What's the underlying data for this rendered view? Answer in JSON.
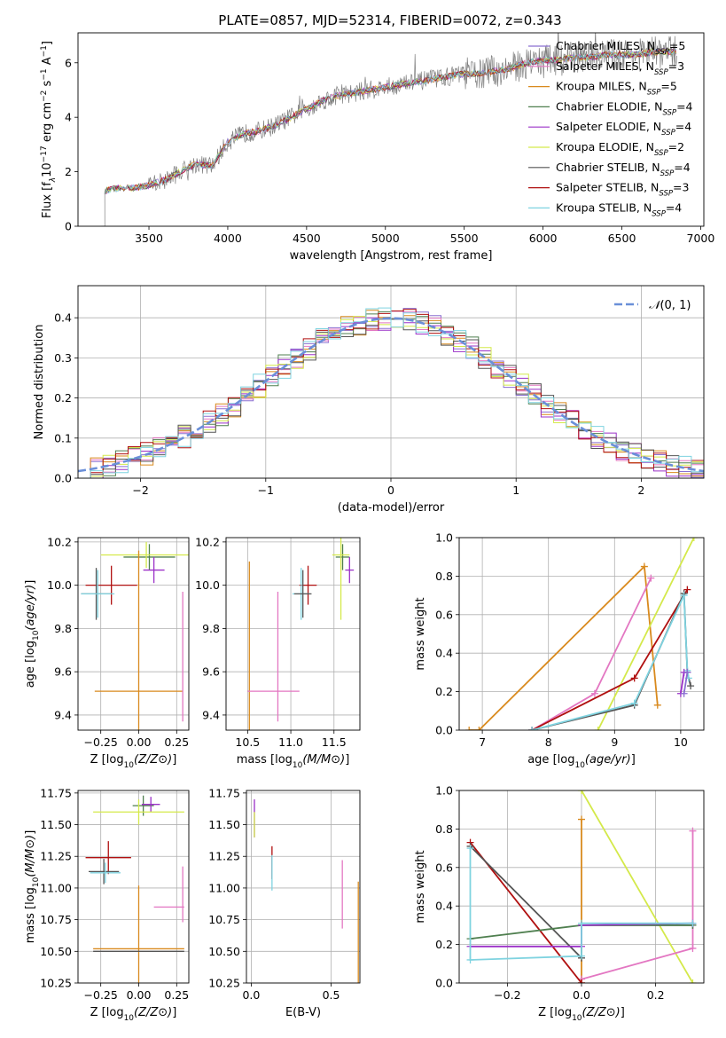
{
  "figure": {
    "title": "PLATE=0857, MJD=52314, FIBERID=0072, z=0.343"
  },
  "legend_entries": [
    {
      "label": "Chabrier MILES, N$_{SSP}$=5",
      "display": "Chabrier MILES, N",
      "sub": "SSP",
      "suffix": "=5",
      "color": "#8a6fd1"
    },
    {
      "label": "Salpeter MILES, N$_{SSP}$=3",
      "display": "Salpeter MILES, N",
      "sub": "SSP",
      "suffix": "=3",
      "color": "#e377c2"
    },
    {
      "label": "Kroupa MILES, N$_{SSP}$=5",
      "display": "Kroupa MILES, N",
      "sub": "SSP",
      "suffix": "=5",
      "color": "#d98a1e"
    },
    {
      "label": "Chabrier ELODIE, N$_{SSP}$=4",
      "display": "Chabrier ELODIE, N",
      "sub": "SSP",
      "suffix": "=4",
      "color": "#4f7f4f"
    },
    {
      "label": "Salpeter ELODIE, N$_{SSP}$=4",
      "display": "Salpeter ELODIE, N",
      "sub": "SSP",
      "suffix": "=4",
      "color": "#9b30c8"
    },
    {
      "label": "Kroupa ELODIE, N$_{SSP}$=2",
      "display": "Kroupa ELODIE, N",
      "sub": "SSP",
      "suffix": "=2",
      "color": "#d4e94a"
    },
    {
      "label": "Chabrier STELIB, N$_{SSP}$=4",
      "display": "Chabrier STELIB, N",
      "sub": "SSP",
      "suffix": "=4",
      "color": "#555555"
    },
    {
      "label": "Salpeter STELIB, N$_{SSP}$=3",
      "display": "Salpeter STELIB, N",
      "sub": "SSP",
      "suffix": "=3",
      "color": "#b01010"
    },
    {
      "label": "Kroupa STELIB, N$_{SSP}$=4",
      "display": "Kroupa STELIB, N",
      "sub": "SSP",
      "suffix": "=4",
      "color": "#7fd3e0"
    }
  ],
  "chart_data": [
    {
      "type": "line",
      "title": "PLATE=0857, MJD=52314, FIBERID=0072, z=0.343",
      "xlabel": "wavelength [Angstrom, rest frame]",
      "ylabel_parts": [
        "Flux [f",
        "λ",
        "10",
        "−17",
        " erg cm",
        "−2",
        " s",
        "−1",
        " A",
        "−1",
        "]"
      ],
      "xlim": [
        3050,
        7020
      ],
      "ylim": [
        0,
        7.1
      ],
      "xticks": [
        3500,
        4000,
        4500,
        5000,
        5500,
        6000,
        6500,
        7000
      ],
      "yticks": [
        0,
        2,
        4,
        6
      ],
      "grid": false,
      "legend": "right",
      "data_color": "#808080",
      "x": [
        3220,
        3300,
        3400,
        3500,
        3600,
        3700,
        3800,
        3900,
        4000,
        4100,
        4200,
        4300,
        4400,
        4500,
        4600,
        4700,
        4800,
        4900,
        5000,
        5100,
        5200,
        5300,
        5400,
        5500,
        5600,
        5700,
        5800,
        5900,
        6000,
        6100,
        6200,
        6300,
        6400,
        6500,
        6600,
        6700,
        6800,
        6850
      ],
      "flux": [
        1.3,
        1.4,
        1.4,
        1.5,
        1.7,
        2.0,
        2.3,
        2.2,
        3.1,
        3.4,
        3.5,
        3.7,
        4.0,
        4.3,
        4.6,
        4.8,
        4.9,
        5.0,
        5.1,
        5.2,
        5.3,
        5.4,
        5.5,
        5.6,
        5.6,
        5.7,
        5.8,
        6.0,
        6.1,
        6.1,
        6.2,
        6.2,
        6.3,
        6.3,
        6.3,
        6.4,
        6.4,
        6.4
      ]
    },
    {
      "type": "line",
      "xlabel": "(data-model)/error",
      "ylabel": "Normed distribution",
      "xlim": [
        -2.5,
        2.5
      ],
      "ylim": [
        0,
        0.48
      ],
      "xticks": [
        -2,
        -1,
        0,
        1,
        2
      ],
      "yticks": [
        0.0,
        0.1,
        0.2,
        0.3,
        0.4
      ],
      "grid": true,
      "legend": "top-right",
      "reference": {
        "label": "𝒩(0,1)",
        "label_main": "𝒩",
        "label_args": "(0, 1)",
        "mu": 0,
        "sigma": 1,
        "color": "#6a8fd8"
      },
      "bin_width": 0.1
    },
    {
      "type": "scatter",
      "xlabel": "Z [log10(Z/Z⊙)]",
      "ylabel": "age  [log10(age/yr)]",
      "xlim": [
        -0.4,
        0.33
      ],
      "ylim": [
        9.33,
        10.22
      ],
      "xticks": [
        -0.25,
        0.0,
        0.25
      ],
      "yticks": [
        9.4,
        9.6,
        9.8,
        10.0,
        10.2
      ],
      "points": [
        {
          "x": -0.18,
          "y": 10.0,
          "xerr": 0.17,
          "yerr": 0.09,
          "series": 7
        },
        {
          "x": -0.28,
          "y": 9.96,
          "xerr": 0.1,
          "yerr": 0.12,
          "series": 6
        },
        {
          "x": -0.27,
          "y": 9.96,
          "xerr": 0.11,
          "yerr": 0.11,
          "series": 8
        },
        {
          "x": 0.07,
          "y": 10.13,
          "xerr": 0.17,
          "yerr": 0.06,
          "series": 3
        },
        {
          "x": 0.1,
          "y": 10.07,
          "xerr": 0.07,
          "yerr": 0.06,
          "series": 4
        },
        {
          "x": 0.05,
          "y": 10.14,
          "xerr": 0.3,
          "yerr": 0.06,
          "series": 5
        },
        {
          "x": 0.0,
          "y": 9.51,
          "xerr": 0.29,
          "yerr": 0.65,
          "series": 2
        },
        {
          "x": 0.29,
          "y": 9.67,
          "xerr": 0.0,
          "yerr": 0.3,
          "series": 1
        }
      ]
    },
    {
      "type": "scatter",
      "xlabel": "mass [log10(M/M⊙)]",
      "xlim": [
        10.25,
        11.8
      ],
      "ylim": [
        9.33,
        10.22
      ],
      "xticks": [
        10.5,
        11.0,
        11.5
      ],
      "yticks": [
        9.4,
        9.6,
        9.8,
        10.0,
        10.2
      ],
      "points": [
        {
          "x": 11.2,
          "y": 10.0,
          "xerr": 0.1,
          "yerr": 0.09,
          "series": 7
        },
        {
          "x": 11.12,
          "y": 9.96,
          "xerr": 0.1,
          "yerr": 0.12,
          "series": 8
        },
        {
          "x": 11.14,
          "y": 9.96,
          "xerr": 0.1,
          "yerr": 0.11,
          "series": 6
        },
        {
          "x": 11.6,
          "y": 10.13,
          "xerr": 0.08,
          "yerr": 0.06,
          "series": 3
        },
        {
          "x": 11.68,
          "y": 10.07,
          "xerr": 0.05,
          "yerr": 0.06,
          "series": 4
        },
        {
          "x": 11.58,
          "y": 10.14,
          "xerr": 0.1,
          "yerr": 0.3,
          "series": 5
        },
        {
          "x": 10.52,
          "y": 9.51,
          "xerr": 0.0,
          "yerr": 0.6,
          "series": 2
        },
        {
          "x": 10.8,
          "y": 9.51,
          "xerr": 0.3,
          "yerr": 0.0,
          "series": 1
        },
        {
          "x": 10.85,
          "y": 9.67,
          "xerr": 0.0,
          "yerr": 0.3,
          "series": 1
        }
      ]
    },
    {
      "type": "line",
      "xlabel": "age  [log10(age/yr)]",
      "ylabel": "mass weight",
      "xlim": [
        6.65,
        10.35
      ],
      "ylim": [
        0,
        1.0
      ],
      "xticks": [
        7,
        8,
        9,
        10
      ],
      "yticks": [
        0.0,
        0.2,
        0.4,
        0.6,
        0.8,
        1.0
      ],
      "grid": true,
      "series": [
        {
          "series": 2,
          "x": [
            6.8,
            6.95,
            9.45,
            9.65
          ],
          "y": [
            0.0,
            0.0,
            0.85,
            0.13
          ]
        },
        {
          "series": 1,
          "x": [
            7.75,
            8.7,
            9.55
          ],
          "y": [
            0.0,
            0.19,
            0.79
          ]
        },
        {
          "series": 5,
          "x": [
            8.75,
            10.2
          ],
          "y": [
            0.0,
            1.0
          ]
        },
        {
          "series": 7,
          "x": [
            7.75,
            9.3,
            10.1
          ],
          "y": [
            0.0,
            0.27,
            0.73
          ]
        },
        {
          "series": 6,
          "x": [
            7.75,
            9.3,
            10.05,
            10.1,
            10.15
          ],
          "y": [
            0.0,
            0.13,
            0.71,
            0.3,
            0.23
          ]
        },
        {
          "series": 8,
          "x": [
            7.75,
            9.3,
            10.05,
            10.1,
            10.12
          ],
          "y": [
            0.0,
            0.14,
            0.7,
            0.31,
            0.27
          ]
        },
        {
          "series": 4,
          "x": [
            10.0,
            10.05,
            10.1
          ],
          "y": [
            0.19,
            0.3,
            0.3
          ]
        },
        {
          "series": 0,
          "x": [
            10.05,
            10.1
          ],
          "y": [
            0.19,
            0.3
          ]
        }
      ]
    },
    {
      "type": "scatter",
      "xlabel": "Z [log10(Z/Z⊙)]",
      "ylabel": "mass [log10(M/M⊙)]",
      "xlim": [
        -0.4,
        0.33
      ],
      "ylim": [
        10.25,
        11.77
      ],
      "xticks": [
        -0.25,
        0.0,
        0.25
      ],
      "yticks": [
        10.25,
        10.5,
        10.75,
        11.0,
        11.25,
        11.5,
        11.75
      ],
      "points": [
        {
          "x": -0.2,
          "y": 11.24,
          "xerr": 0.15,
          "yerr": 0.13,
          "series": 7
        },
        {
          "x": -0.23,
          "y": 11.13,
          "xerr": 0.1,
          "yerr": 0.1,
          "series": 6
        },
        {
          "x": -0.22,
          "y": 11.12,
          "xerr": 0.1,
          "yerr": 0.08,
          "series": 8
        },
        {
          "x": 0.03,
          "y": 11.65,
          "xerr": 0.07,
          "yerr": 0.08,
          "series": 3
        },
        {
          "x": 0.08,
          "y": 11.66,
          "xerr": 0.06,
          "yerr": 0.06,
          "series": 4
        },
        {
          "x": 0.0,
          "y": 11.6,
          "xerr": 0.3,
          "yerr": 0.1,
          "series": 5
        },
        {
          "x": 0.0,
          "y": 10.52,
          "xerr": 0.3,
          "yerr": 0.5,
          "series": 2
        },
        {
          "x": 0.0,
          "y": 10.5,
          "xerr": 0.3,
          "yerr": 0.0,
          "series": 6
        },
        {
          "x": 0.29,
          "y": 10.95,
          "xerr": 0.0,
          "yerr": 0.22,
          "series": 1
        },
        {
          "x": 0.2,
          "y": 10.85,
          "xerr": 0.1,
          "yerr": 0.0,
          "series": 1
        }
      ]
    },
    {
      "type": "scatter",
      "xlabel": "E(B-V)",
      "xlim": [
        -0.03,
        0.68
      ],
      "ylim": [
        10.25,
        11.77
      ],
      "xticks": [
        0.0,
        0.5
      ],
      "yticks": [
        10.25,
        10.5,
        10.75,
        11.0,
        11.25,
        11.5,
        11.75
      ],
      "points": [
        {
          "x": 0.02,
          "y": 11.55,
          "xerr": 0.0,
          "yerr": 0.15,
          "series": 4
        },
        {
          "x": 0.02,
          "y": 11.5,
          "xerr": 0.0,
          "yerr": 0.1,
          "series": 5
        },
        {
          "x": 0.13,
          "y": 11.2,
          "xerr": 0.0,
          "yerr": 0.13,
          "series": 7
        },
        {
          "x": 0.13,
          "y": 11.12,
          "xerr": 0.0,
          "yerr": 0.14,
          "series": 8
        },
        {
          "x": 0.57,
          "y": 10.95,
          "xerr": 0.0,
          "yerr": 0.27,
          "series": 1
        },
        {
          "x": 0.67,
          "y": 10.6,
          "xerr": 0.0,
          "yerr": 0.45,
          "series": 2
        }
      ]
    },
    {
      "type": "line",
      "xlabel": "Z [log10(Z/Z⊙)]",
      "ylabel": "mass weight",
      "xlim": [
        -0.33,
        0.33
      ],
      "ylim": [
        0,
        1.0
      ],
      "xticks": [
        -0.2,
        0.0,
        0.2
      ],
      "yticks": [
        0.0,
        0.2,
        0.4,
        0.6,
        0.8,
        1.0
      ],
      "grid": true,
      "series": [
        {
          "series": 5,
          "x": [
            0.0,
            0.3
          ],
          "y": [
            1.0,
            0.0
          ]
        },
        {
          "series": 2,
          "x": [
            0.0,
            0.0
          ],
          "y": [
            0.0,
            0.85
          ]
        },
        {
          "series": 1,
          "x": [
            0.0,
            0.3,
            0.3
          ],
          "y": [
            0.02,
            0.18,
            0.79
          ]
        },
        {
          "series": 7,
          "x": [
            -0.3,
            0.0,
            0.0
          ],
          "y": [
            0.73,
            0.0,
            0.0
          ]
        },
        {
          "series": 6,
          "x": [
            -0.3,
            0.0,
            0.0,
            0.3
          ],
          "y": [
            0.71,
            0.13,
            0.3,
            0.3
          ]
        },
        {
          "series": 3,
          "x": [
            -0.3,
            0.0,
            0.3
          ],
          "y": [
            0.23,
            0.3,
            0.3
          ]
        },
        {
          "series": 4,
          "x": [
            -0.3,
            0.0,
            0.0,
            0.3
          ],
          "y": [
            0.19,
            0.19,
            0.3,
            0.31
          ]
        },
        {
          "series": 8,
          "x": [
            -0.3,
            -0.3,
            0.0,
            0.0,
            0.3
          ],
          "y": [
            0.7,
            0.12,
            0.14,
            0.31,
            0.31
          ]
        }
      ]
    }
  ]
}
